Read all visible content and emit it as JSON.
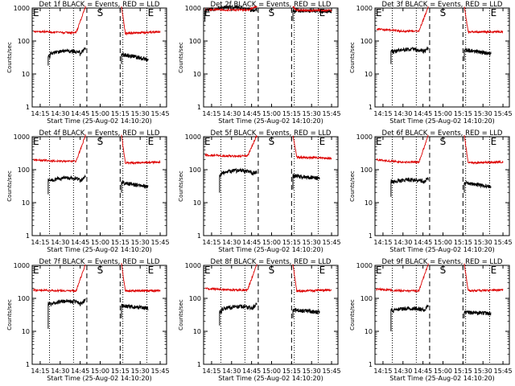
{
  "colors": {
    "events": "#000000",
    "lld": "#dd0000",
    "background": "#ffffff"
  },
  "chart_data": [
    {
      "type": "line",
      "title": "Det 1f BLACK = Events, RED = LLD",
      "xlabel": "Start Time (25-Aug-02 14:10:20)",
      "ylabel": "Counts/sec",
      "yscale": "log",
      "ylim": [
        1,
        1000
      ],
      "xlim": [
        14.15,
        15.83
      ],
      "x_ticks": [
        "14:15",
        "14:30",
        "14:45",
        "15:00",
        "15:15",
        "15:30",
        "15:45"
      ],
      "y_ticks": [
        "1",
        "10",
        "100",
        "1000"
      ],
      "markers": [
        {
          "label": "E",
          "time": "14:10:20"
        },
        {
          "label": "S",
          "time": "15:00:00"
        },
        {
          "label": "E",
          "time": "15:38:00"
        }
      ],
      "dotted_lines": [
        "14:22",
        "14:40",
        "15:17",
        "15:35"
      ],
      "dashed_lines": [
        "14:50",
        "15:15"
      ],
      "series": [
        {
          "name": "BLACK = Events",
          "segments": [
            {
              "start": "14:21",
              "end": "14:49",
              "baseline": 40,
              "start_value": 35,
              "end_value": 60,
              "spike_low": 18
            },
            {
              "start": "15:16",
              "end": "15:36",
              "baseline": 30,
              "start_value": 40,
              "end_value": 27,
              "spike_low": 20
            }
          ]
        },
        {
          "name": "RED = LLD",
          "segments": [
            {
              "start": "14:10",
              "end": "14:49",
              "baseline": 180,
              "start_value": 200,
              "end_value": 1100
            },
            {
              "start": "15:16",
              "end": "15:45",
              "baseline": 170,
              "start_value": 1100,
              "end_value": 190
            }
          ]
        }
      ]
    },
    {
      "type": "line",
      "title": "Det 2f BLACK = Events, RED = LLD",
      "xlabel": "Start Time (25-Aug-02 14:10:20)",
      "ylabel": "Counts/sec",
      "yscale": "log",
      "ylim": [
        1,
        1000
      ],
      "xlim": [
        14.15,
        15.83
      ],
      "x_ticks": [
        "14:15",
        "14:30",
        "14:45",
        "15:00",
        "15:15",
        "15:30",
        "15:45"
      ],
      "y_ticks": [
        "1",
        "10",
        "100",
        "1000"
      ],
      "markers": [
        {
          "label": "E",
          "time": "14:10:20"
        },
        {
          "label": "S",
          "time": "15:00:00"
        },
        {
          "label": "E",
          "time": "15:38:00"
        }
      ],
      "dotted_lines": [
        "14:22",
        "14:40",
        "15:17",
        "15:35"
      ],
      "dashed_lines": [
        "14:50",
        "15:15"
      ],
      "series": [
        {
          "name": "BLACK = Events",
          "segments": [
            {
              "start": "14:10",
              "end": "14:49",
              "baseline": 850,
              "start_value": 850,
              "end_value": 900,
              "spike_low": 400
            },
            {
              "start": "15:16",
              "end": "15:45",
              "baseline": 820,
              "start_value": 850,
              "end_value": 800,
              "spike_low": 400
            }
          ]
        },
        {
          "name": "RED = LLD",
          "segments": [
            {
              "start": "14:10",
              "end": "14:49",
              "baseline": 880,
              "start_value": 900,
              "end_value": 1100
            },
            {
              "start": "15:16",
              "end": "15:45",
              "baseline": 850,
              "start_value": 1100,
              "end_value": 850
            }
          ]
        }
      ]
    },
    {
      "type": "line",
      "title": "Det 3f BLACK = Events, RED = LLD",
      "xlabel": "Start Time (25-Aug-02 14:10:20)",
      "ylabel": "Counts/sec",
      "yscale": "log",
      "ylim": [
        1,
        1000
      ],
      "xlim": [
        14.15,
        15.83
      ],
      "x_ticks": [
        "14:15",
        "14:30",
        "14:45",
        "15:00",
        "15:15",
        "15:30",
        "15:45"
      ],
      "y_ticks": [
        "1",
        "10",
        "100",
        "1000"
      ],
      "markers": [
        {
          "label": "E",
          "time": "14:10:20"
        },
        {
          "label": "S",
          "time": "15:00:00"
        },
        {
          "label": "E",
          "time": "15:38:00"
        }
      ],
      "dotted_lines": [
        "14:22",
        "14:40",
        "15:17",
        "15:35"
      ],
      "dashed_lines": [
        "14:50",
        "15:15"
      ],
      "series": [
        {
          "name": "BLACK = Events",
          "segments": [
            {
              "start": "14:21",
              "end": "14:49",
              "baseline": 45,
              "start_value": 50,
              "end_value": 60,
              "spike_low": 20
            },
            {
              "start": "15:16",
              "end": "15:36",
              "baseline": 45,
              "start_value": 55,
              "end_value": 40,
              "spike_low": 25
            }
          ]
        },
        {
          "name": "RED = LLD",
          "segments": [
            {
              "start": "14:10",
              "end": "14:49",
              "baseline": 200,
              "start_value": 230,
              "end_value": 1100
            },
            {
              "start": "15:16",
              "end": "15:45",
              "baseline": 190,
              "start_value": 1100,
              "end_value": 190
            }
          ]
        }
      ]
    },
    {
      "type": "line",
      "title": "Det 4f BLACK = Events, RED = LLD",
      "xlabel": "Start Time (25-Aug-02 14:10:20)",
      "ylabel": "Counts/sec",
      "yscale": "log",
      "ylim": [
        1,
        1000
      ],
      "xlim": [
        14.15,
        15.83
      ],
      "x_ticks": [
        "14:15",
        "14:30",
        "14:45",
        "15:00",
        "15:15",
        "15:30",
        "15:45"
      ],
      "y_ticks": [
        "1",
        "10",
        "100",
        "1000"
      ],
      "markers": [
        {
          "label": "E",
          "time": "14:10:20"
        },
        {
          "label": "S",
          "time": "15:00:00"
        },
        {
          "label": "E",
          "time": "15:38:00"
        }
      ],
      "dotted_lines": [
        "14:22",
        "14:40",
        "15:17",
        "15:35"
      ],
      "dashed_lines": [
        "14:50",
        "15:15"
      ],
      "series": [
        {
          "name": "BLACK = Events",
          "segments": [
            {
              "start": "14:21",
              "end": "14:49",
              "baseline": 45,
              "start_value": 50,
              "end_value": 60,
              "spike_low": 18
            },
            {
              "start": "15:16",
              "end": "15:36",
              "baseline": 35,
              "start_value": 40,
              "end_value": 30,
              "spike_low": 20
            }
          ]
        },
        {
          "name": "RED = LLD",
          "segments": [
            {
              "start": "14:10",
              "end": "14:49",
              "baseline": 180,
              "start_value": 200,
              "end_value": 1100
            },
            {
              "start": "15:16",
              "end": "15:45",
              "baseline": 160,
              "start_value": 1100,
              "end_value": 170
            }
          ]
        }
      ]
    },
    {
      "type": "line",
      "title": "Det 5f BLACK = Events, RED = LLD",
      "xlabel": "Start Time (25-Aug-02 14:10:20)",
      "ylabel": "Counts/sec",
      "yscale": "log",
      "ylim": [
        1,
        1000
      ],
      "xlim": [
        14.15,
        15.83
      ],
      "x_ticks": [
        "14:15",
        "14:30",
        "14:45",
        "15:00",
        "15:15",
        "15:30",
        "15:45"
      ],
      "y_ticks": [
        "1",
        "10",
        "100",
        "1000"
      ],
      "markers": [
        {
          "label": "E",
          "time": "14:10:20"
        },
        {
          "label": "S",
          "time": "15:00:00"
        },
        {
          "label": "E",
          "time": "15:38:00"
        }
      ],
      "dotted_lines": [
        "14:22",
        "14:40",
        "15:17",
        "15:35"
      ],
      "dashed_lines": [
        "14:50",
        "15:15"
      ],
      "series": [
        {
          "name": "BLACK = Events",
          "segments": [
            {
              "start": "14:21",
              "end": "14:49",
              "baseline": 75,
              "start_value": 70,
              "end_value": 85,
              "spike_low": 20
            },
            {
              "start": "15:16",
              "end": "15:36",
              "baseline": 60,
              "start_value": 65,
              "end_value": 55,
              "spike_low": 25
            }
          ]
        },
        {
          "name": "RED = LLD",
          "segments": [
            {
              "start": "14:10",
              "end": "14:49",
              "baseline": 260,
              "start_value": 280,
              "end_value": 1100
            },
            {
              "start": "15:16",
              "end": "15:45",
              "baseline": 240,
              "start_value": 1100,
              "end_value": 220
            }
          ]
        }
      ]
    },
    {
      "type": "line",
      "title": "Det 6f BLACK = Events, RED = LLD",
      "xlabel": "Start Time (25-Aug-02 14:10:20)",
      "ylabel": "Counts/sec",
      "yscale": "log",
      "ylim": [
        1,
        1000
      ],
      "xlim": [
        14.15,
        15.83
      ],
      "x_ticks": [
        "14:15",
        "14:30",
        "14:45",
        "15:00",
        "15:15",
        "15:30",
        "15:45"
      ],
      "y_ticks": [
        "1",
        "10",
        "100",
        "1000"
      ],
      "markers": [
        {
          "label": "E",
          "time": "14:10:20"
        },
        {
          "label": "S",
          "time": "15:00:00"
        },
        {
          "label": "E",
          "time": "15:38:00"
        }
      ],
      "dotted_lines": [
        "14:22",
        "14:40",
        "15:17",
        "15:35"
      ],
      "dashed_lines": [
        "14:50",
        "15:15"
      ],
      "series": [
        {
          "name": "BLACK = Events",
          "segments": [
            {
              "start": "14:21",
              "end": "14:49",
              "baseline": 40,
              "start_value": 45,
              "end_value": 55,
              "spike_low": 15
            },
            {
              "start": "15:16",
              "end": "15:36",
              "baseline": 35,
              "start_value": 40,
              "end_value": 30,
              "spike_low": 20
            }
          ]
        },
        {
          "name": "RED = LLD",
          "segments": [
            {
              "start": "14:10",
              "end": "14:49",
              "baseline": 170,
              "start_value": 200,
              "end_value": 1100
            },
            {
              "start": "15:16",
              "end": "15:45",
              "baseline": 160,
              "start_value": 1100,
              "end_value": 170
            }
          ]
        }
      ]
    },
    {
      "type": "line",
      "title": "Det 7f BLACK = Events, RED = LLD",
      "xlabel": "Start Time (25-Aug-02 14:10:20)",
      "ylabel": "Counts/sec",
      "yscale": "log",
      "ylim": [
        1,
        1000
      ],
      "xlim": [
        14.15,
        15.83
      ],
      "x_ticks": [
        "14:15",
        "14:30",
        "14:45",
        "15:00",
        "15:15",
        "15:30",
        "15:45"
      ],
      "y_ticks": [
        "1",
        "10",
        "100",
        "1000"
      ],
      "markers": [
        {
          "label": "E",
          "time": "14:10:20"
        },
        {
          "label": "S",
          "time": "15:00:00"
        },
        {
          "label": "E",
          "time": "15:38:00"
        }
      ],
      "dotted_lines": [
        "14:22",
        "14:40",
        "15:17",
        "15:35"
      ],
      "dashed_lines": [
        "14:50",
        "15:15"
      ],
      "series": [
        {
          "name": "BLACK = Events",
          "segments": [
            {
              "start": "14:21",
              "end": "14:49",
              "baseline": 65,
              "start_value": 70,
              "end_value": 90,
              "spike_low": 12
            },
            {
              "start": "15:16",
              "end": "15:36",
              "baseline": 55,
              "start_value": 60,
              "end_value": 50,
              "spike_low": 25
            }
          ]
        },
        {
          "name": "RED = LLD",
          "segments": [
            {
              "start": "14:10",
              "end": "14:49",
              "baseline": 170,
              "start_value": 180,
              "end_value": 1100
            },
            {
              "start": "15:16",
              "end": "15:45",
              "baseline": 170,
              "start_value": 1100,
              "end_value": 170
            }
          ]
        }
      ]
    },
    {
      "type": "line",
      "title": "Det 8f BLACK = Events, RED = LLD",
      "xlabel": "Start Time (25-Aug-02 14:10:20)",
      "ylabel": "Counts/sec",
      "yscale": "log",
      "ylim": [
        1,
        1000
      ],
      "xlim": [
        14.15,
        15.83
      ],
      "x_ticks": [
        "14:15",
        "14:30",
        "14:45",
        "15:00",
        "15:15",
        "15:30",
        "15:45"
      ],
      "y_ticks": [
        "1",
        "10",
        "100",
        "1000"
      ],
      "markers": [
        {
          "label": "E",
          "time": "14:10:20"
        },
        {
          "label": "S",
          "time": "15:00:00"
        },
        {
          "label": "E",
          "time": "15:38:00"
        }
      ],
      "dotted_lines": [
        "14:22",
        "14:40",
        "15:17",
        "15:35"
      ],
      "dashed_lines": [
        "14:50",
        "15:15"
      ],
      "series": [
        {
          "name": "BLACK = Events",
          "segments": [
            {
              "start": "14:21",
              "end": "14:49",
              "baseline": 45,
              "start_value": 40,
              "end_value": 70,
              "spike_low": 15
            },
            {
              "start": "15:16",
              "end": "15:36",
              "baseline": 40,
              "start_value": 45,
              "end_value": 38,
              "spike_low": 25
            }
          ]
        },
        {
          "name": "RED = LLD",
          "segments": [
            {
              "start": "14:10",
              "end": "14:49",
              "baseline": 180,
              "start_value": 200,
              "end_value": 1100
            },
            {
              "start": "15:16",
              "end": "15:45",
              "baseline": 165,
              "start_value": 1100,
              "end_value": 180
            }
          ]
        }
      ]
    },
    {
      "type": "line",
      "title": "Det 9f BLACK = Events, RED = LLD",
      "xlabel": "Start Time (25-Aug-02 14:10:20)",
      "ylabel": "Counts/sec",
      "yscale": "log",
      "ylim": [
        1,
        1000
      ],
      "xlim": [
        14.15,
        15.83
      ],
      "x_ticks": [
        "14:15",
        "14:30",
        "14:45",
        "15:00",
        "15:15",
        "15:30",
        "15:45"
      ],
      "y_ticks": [
        "1",
        "10",
        "100",
        "1000"
      ],
      "markers": [
        {
          "label": "E",
          "time": "14:10:20"
        },
        {
          "label": "S",
          "time": "15:00:00"
        },
        {
          "label": "E",
          "time": "15:38:00"
        }
      ],
      "dotted_lines": [
        "14:22",
        "14:40",
        "15:17",
        "15:35"
      ],
      "dashed_lines": [
        "14:50",
        "15:15"
      ],
      "series": [
        {
          "name": "BLACK = Events",
          "segments": [
            {
              "start": "14:21",
              "end": "14:49",
              "baseline": 40,
              "start_value": 45,
              "end_value": 60,
              "spike_low": 10
            },
            {
              "start": "15:16",
              "end": "15:36",
              "baseline": 35,
              "start_value": 38,
              "end_value": 35,
              "spike_low": 25
            }
          ]
        },
        {
          "name": "RED = LLD",
          "segments": [
            {
              "start": "14:10",
              "end": "14:49",
              "baseline": 170,
              "start_value": 190,
              "end_value": 1100
            },
            {
              "start": "15:16",
              "end": "15:45",
              "baseline": 170,
              "start_value": 1100,
              "end_value": 180
            }
          ]
        }
      ]
    }
  ]
}
